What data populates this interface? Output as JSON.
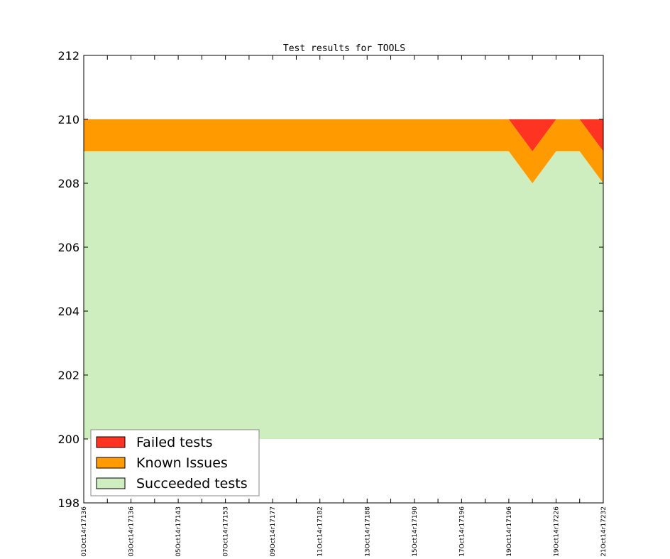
{
  "chart_data": {
    "type": "area",
    "title": "Test results for TOOLS",
    "xlabel": "",
    "ylabel": "",
    "ylim": [
      198,
      212
    ],
    "yticks": [
      198,
      200,
      202,
      204,
      206,
      208,
      210,
      212
    ],
    "x": [
      0,
      1,
      2,
      3,
      4,
      5,
      6,
      7,
      8,
      9,
      10,
      11,
      12,
      13,
      14,
      15,
      16,
      17,
      18,
      19,
      20,
      21,
      22
    ],
    "xtick_positions": [
      0,
      2,
      4,
      6,
      8,
      10,
      12,
      14,
      16,
      18,
      20,
      22
    ],
    "xtick_labels": [
      "01Oct14r17136",
      "03Oct14r17136",
      "05Oct14r17143",
      "07Oct14r17153",
      "09Oct14r17177",
      "11Oct14r17182",
      "13Oct14r17188",
      "15Oct14r17190",
      "17Oct14r17196",
      "19Oct14r17196",
      "19Oct14r17226",
      "21Oct14r17232"
    ],
    "baseline": 200,
    "series": [
      {
        "name": "Succeeded tests",
        "color": "#cfeebf",
        "values": [
          209,
          209,
          209,
          209,
          209,
          209,
          209,
          209,
          209,
          209,
          209,
          209,
          209,
          209,
          209,
          209,
          209,
          209,
          209,
          208,
          209,
          209,
          208
        ]
      },
      {
        "name": "Known Issues",
        "color": "#ff9a00",
        "values": [
          1,
          1,
          1,
          1,
          1,
          1,
          1,
          1,
          1,
          1,
          1,
          1,
          1,
          1,
          1,
          1,
          1,
          1,
          1,
          1,
          1,
          1,
          1
        ]
      },
      {
        "name": "Failed tests",
        "color": "#ff3322",
        "values": [
          0,
          0,
          0,
          0,
          0,
          0,
          0,
          0,
          0,
          0,
          0,
          0,
          0,
          0,
          0,
          0,
          0,
          0,
          0,
          1,
          0,
          0,
          1
        ]
      }
    ],
    "legend": {
      "placement": "lower-left",
      "entries": [
        "Failed tests",
        "Known Issues",
        "Succeeded tests"
      ]
    },
    "grid": false
  }
}
